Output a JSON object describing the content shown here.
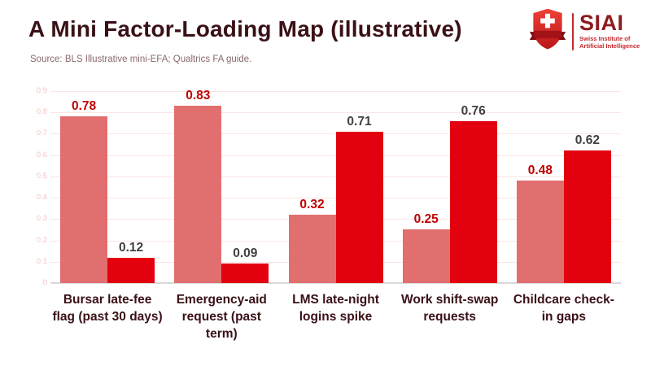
{
  "header": {
    "title": "A Mini Factor-Loading Map (illustrative)",
    "source": "Source: BLS Illustrative mini-EFA; Qualtrics FA guide.",
    "title_color": "#3a1116",
    "source_color": "#8a6a6a"
  },
  "logo": {
    "acronym": "SIAI",
    "subtitle_line1": "Swiss Institute of",
    "subtitle_line2": "Artificial Intelligence",
    "shield_icon": "swiss-shield-cross-icon",
    "acronym_color": "#8c1c20",
    "subtitle_color": "#c5272b"
  },
  "chart_data": {
    "type": "bar",
    "title": "A Mini Factor-Loading Map (illustrative)",
    "categories": [
      "Bursar late-fee flag (past 30 days)",
      "Emergency-aid request (past term)",
      "LMS late-night logins spike",
      "Work shift-swap requests",
      "Childcare check-in gaps"
    ],
    "series": [
      {
        "name": "series-1",
        "color": "#e26f6f",
        "label_color": "#c00000",
        "values": [
          0.78,
          0.83,
          0.32,
          0.25,
          0.48
        ]
      },
      {
        "name": "series-2",
        "color": "#e3000f",
        "label_color": "#404040",
        "values": [
          0.12,
          0.09,
          0.71,
          0.76,
          0.62
        ]
      }
    ],
    "ylim": [
      0,
      0.9
    ],
    "ytick_step": 0.1,
    "ytick_labels": [
      "0",
      "0.1",
      "0.2",
      "0.3",
      "0.4",
      "0.5",
      "0.6",
      "0.7",
      "0.8",
      "0.9"
    ],
    "grid": true,
    "legend": "none",
    "gridline_color": "#fce4e4",
    "tick_label_color": "#f5c5c5",
    "axis_line_color": "#d9d9d9",
    "category_label_color": "#3a1116",
    "xlabel": "",
    "ylabel": ""
  }
}
